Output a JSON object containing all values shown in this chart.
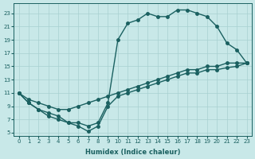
{
  "xlabel": "Humidex (Indice chaleur)",
  "background_color": "#c8e8e8",
  "line_color": "#1a6060",
  "grid_color": "#a8d0d0",
  "xlim": [
    -0.5,
    23.5
  ],
  "ylim": [
    4.5,
    24.5
  ],
  "xticks": [
    0,
    1,
    2,
    3,
    4,
    5,
    6,
    7,
    8,
    9,
    10,
    11,
    12,
    13,
    14,
    15,
    16,
    17,
    18,
    19,
    20,
    21,
    22,
    23
  ],
  "yticks": [
    5,
    7,
    9,
    11,
    13,
    15,
    17,
    19,
    21,
    23
  ],
  "line1_x": [
    0,
    1,
    2,
    3,
    4,
    5,
    6,
    7,
    8,
    9,
    10,
    11,
    12,
    13,
    14,
    15,
    16,
    17,
    18,
    19,
    20,
    21,
    22,
    23
  ],
  "line1_y": [
    11,
    9.5,
    8.5,
    8.0,
    7.5,
    6.5,
    6.5,
    6.0,
    6.5,
    9.5,
    19.0,
    21.5,
    22.0,
    23.0,
    22.5,
    22.5,
    23.5,
    23.5,
    23.0,
    22.5,
    21.0,
    18.5,
    17.5,
    15.5
  ],
  "line2_x": [
    0,
    1,
    2,
    3,
    4,
    5,
    6,
    7,
    8,
    9,
    10,
    11,
    12,
    13,
    14,
    15,
    16,
    17,
    18,
    19,
    20,
    21,
    22,
    23
  ],
  "line2_y": [
    11,
    9.5,
    8.5,
    7.5,
    7.0,
    6.5,
    6.0,
    5.2,
    6.0,
    9.0,
    10.5,
    11.0,
    11.5,
    12.0,
    12.5,
    13.0,
    13.5,
    14.0,
    14.0,
    14.5,
    14.5,
    14.8,
    15.0,
    15.5
  ],
  "line3_x": [
    0,
    1,
    2,
    3,
    4,
    5,
    6,
    7,
    8,
    9,
    10,
    11,
    12,
    13,
    14,
    15,
    16,
    17,
    18,
    19,
    20,
    21,
    22,
    23
  ],
  "line3_y": [
    11,
    10.0,
    9.5,
    9.0,
    8.5,
    8.5,
    9.0,
    9.5,
    10.0,
    10.5,
    11.0,
    11.5,
    12.0,
    12.5,
    13.0,
    13.5,
    14.0,
    14.5,
    14.5,
    15.0,
    15.0,
    15.5,
    15.5,
    15.5
  ],
  "marker_size": 2.5,
  "linewidth": 1.0
}
